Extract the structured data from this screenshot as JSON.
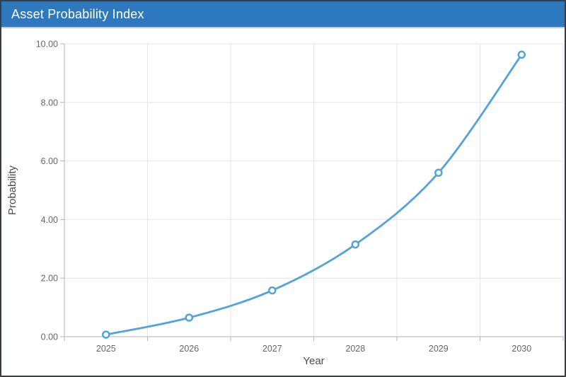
{
  "window": {
    "title": "Asset Probability Index"
  },
  "theme": {
    "frame_border": "#363d44",
    "header_bg": "#2e79bd",
    "header_text": "#ffffff",
    "header_underline": "#b5cde6",
    "surface": "#ffffff",
    "line_color": "#53a2d8",
    "point_fill": "#ffffff",
    "point_stroke": "#53a2d8",
    "gridline_color": "#e6e6e6",
    "axis_line_color": "#b3b3b3",
    "tick_text_color": "#666666",
    "axis_title_color": "#4d4d4d"
  },
  "chart_data": {
    "type": "line",
    "title": "Asset Probability Index",
    "xlabel": "Year",
    "ylabel": "Probability",
    "categories": [
      "2025",
      "2026",
      "2027",
      "2028",
      "2029",
      "2030"
    ],
    "series": [
      {
        "name": "Probability",
        "values": [
          0.07,
          0.65,
          1.58,
          3.15,
          5.6,
          9.63
        ]
      }
    ],
    "ylim": [
      0,
      10
    ],
    "ytick_values": [
      0,
      2,
      4,
      6,
      8,
      10
    ],
    "ytick_labels": [
      "0.00",
      "2.00",
      "4.00",
      "6.00",
      "8.00",
      "10.00"
    ],
    "grid": true,
    "legend": false,
    "point_style": "open-circle",
    "smooth": true
  }
}
